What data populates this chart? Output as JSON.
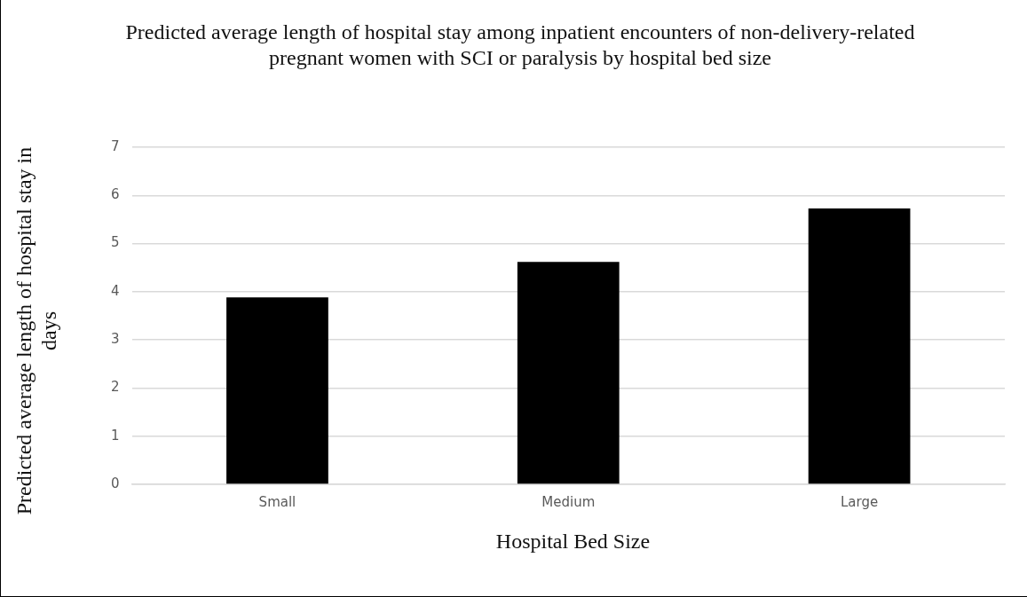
{
  "chart_data": {
    "type": "bar",
    "title": "Predicted average length of hospital stay among inpatient encounters of non-delivery-related pregnant women with SCI or paralysis by hospital bed size",
    "xlabel": "Hospital Bed Size",
    "ylabel": "Predicted average length of hospital stay in days",
    "categories": [
      "Small",
      "Medium",
      "Large"
    ],
    "values": [
      3.88,
      4.62,
      5.73
    ],
    "color": "#000000",
    "ylim": [
      0,
      7
    ],
    "yticks": [
      0,
      1,
      2,
      3,
      4,
      5,
      6,
      7
    ],
    "grid": "y",
    "legend": false
  }
}
